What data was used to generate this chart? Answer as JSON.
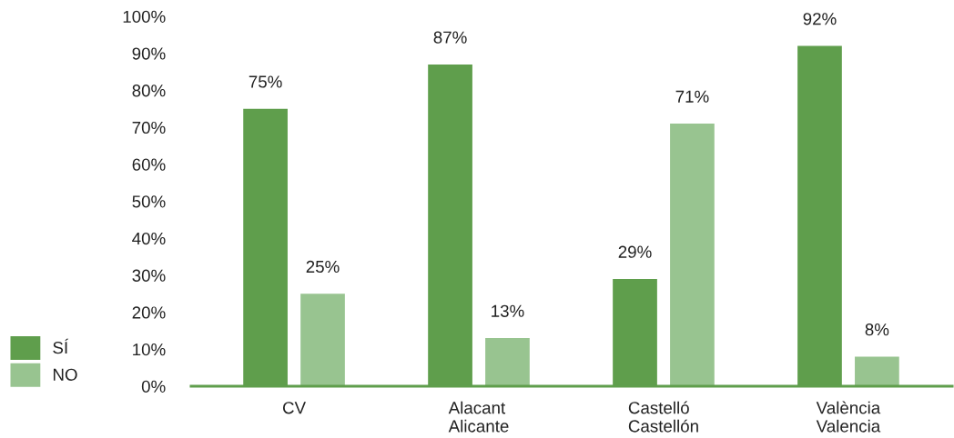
{
  "chart_data": {
    "type": "bar",
    "categories": [
      "CV",
      "Alacant\nAlicante",
      "Castelló\nCastellón",
      "València\nValencia"
    ],
    "series": [
      {
        "name": "SÍ",
        "color": "#5f9e4c",
        "values": [
          75,
          87,
          29,
          92
        ],
        "value_labels": [
          "75%",
          "87%",
          "29%",
          "92%"
        ]
      },
      {
        "name": "NO",
        "color": "#98c490",
        "values": [
          25,
          13,
          71,
          8
        ],
        "value_labels": [
          "25%",
          "13%",
          "71%",
          "8%"
        ]
      }
    ],
    "ylim": [
      0,
      100
    ],
    "yticks": [
      {
        "value": 0,
        "label": "0%"
      },
      {
        "value": 10,
        "label": "10%"
      },
      {
        "value": 20,
        "label": "20%"
      },
      {
        "value": 30,
        "label": "30%"
      },
      {
        "value": 40,
        "label": "40%"
      },
      {
        "value": 50,
        "label": "50%"
      },
      {
        "value": 60,
        "label": "60%"
      },
      {
        "value": 70,
        "label": "70%"
      },
      {
        "value": 80,
        "label": "80%"
      },
      {
        "value": 90,
        "label": "90%"
      },
      {
        "value": 100,
        "label": "100%"
      }
    ],
    "grid": false,
    "legend": "bottom left"
  }
}
